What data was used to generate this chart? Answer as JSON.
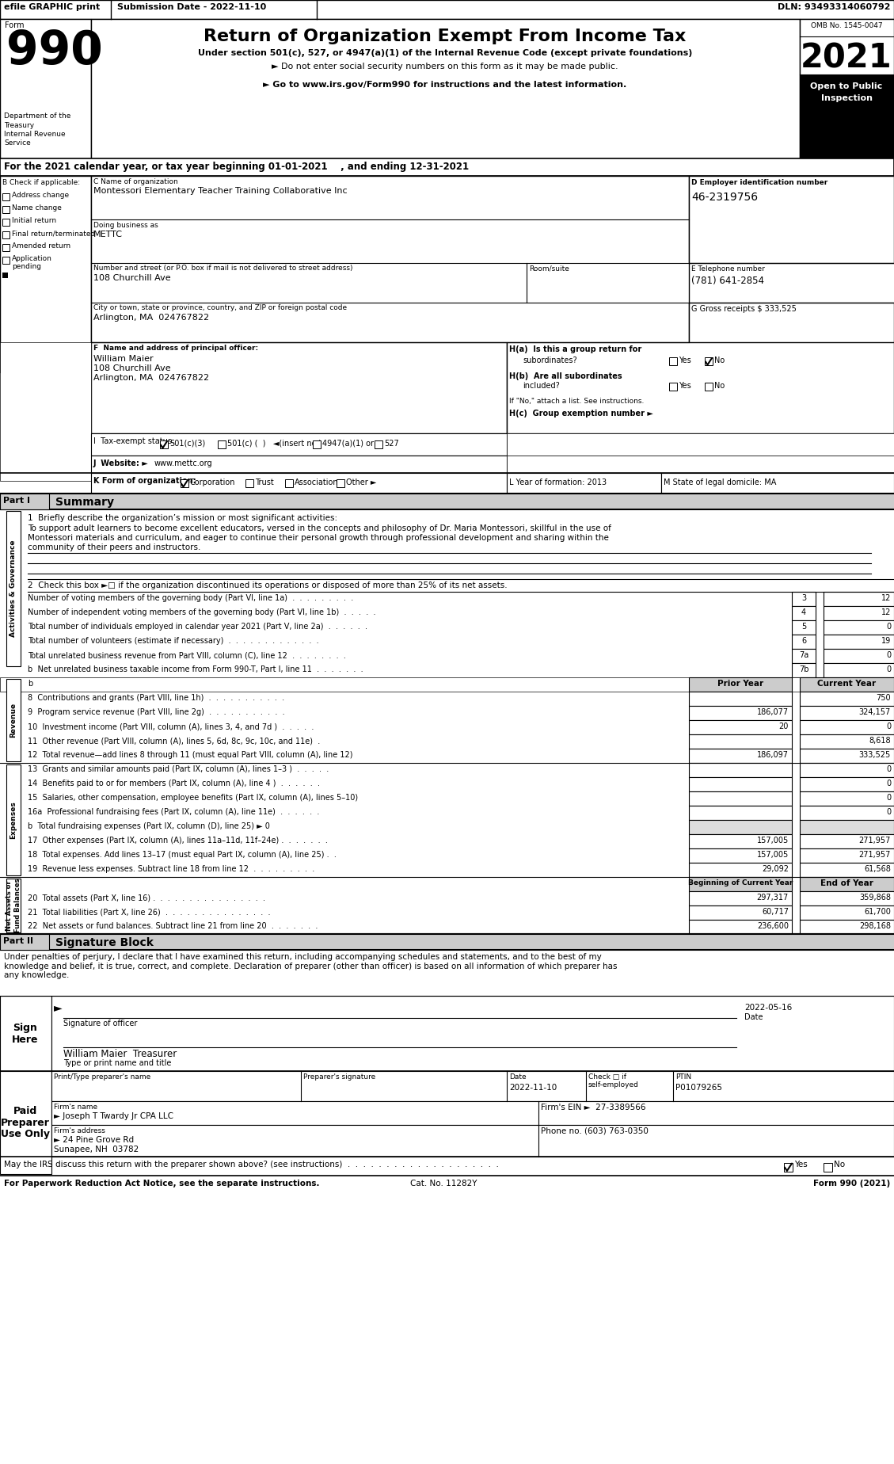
{
  "title": "Return of Organization Exempt From Income Tax",
  "subtitle1": "Under section 501(c), 527, or 4947(a)(1) of the Internal Revenue Code (except private foundations)",
  "subtitle2": "► Do not enter social security numbers on this form as it may be made public.",
  "subtitle3": "► Go to www.irs.gov/Form990 for instructions and the latest information.",
  "omb": "OMB No. 1545-0047",
  "year": "2021",
  "tax_year_line": "For the 2021 calendar year, or tax year beginning 01-01-2021    , and ending 12-31-2021",
  "org_name": "Montessori Elementary Teacher Training Collaborative Inc",
  "dba": "METTC",
  "street": "108 Churchill Ave",
  "city": "Arlington, MA  024767822",
  "EIN": "46-2319756",
  "phone": "(781) 641-2854",
  "gross_receipts": "333,525",
  "F_name": "William Maier",
  "F_street": "108 Churchill Ave",
  "F_city": "Arlington, MA  024767822",
  "J_website": "www.mettc.org",
  "line1_label": "1  Briefly describe the organization’s mission or most significant activities:",
  "line1_text1": "To support adult learners to become excellent educators, versed in the concepts and philosophy of Dr. Maria Montessori, skillful in the use of",
  "line1_text2": "Montessori materials and curriculum, and eager to continue their personal growth through professional development and sharing within the",
  "line1_text3": "community of their peers and instructors.",
  "line2_text": "2  Check this box ►□ if the organization discontinued its operations or disposed of more than 25% of its net assets.",
  "lines_ag": [
    [
      "3",
      "Number of voting members of the governing body (Part VI, line 1a)  .  .  .  .  .  .  .  .  .",
      "3",
      "12"
    ],
    [
      "4",
      "Number of independent voting members of the governing body (Part VI, line 1b)  .  .  .  .  .",
      "4",
      "12"
    ],
    [
      "5",
      "Total number of individuals employed in calendar year 2021 (Part V, line 2a)  .  .  .  .  .  .",
      "5",
      "0"
    ],
    [
      "6",
      "Total number of volunteers (estimate if necessary)  .  .  .  .  .  .  .  .  .  .  .  .  .",
      "6",
      "19"
    ],
    [
      "7a",
      "Total unrelated business revenue from Part VIII, column (C), line 12  .  .  .  .  .  .  .  .",
      "7a",
      "0"
    ],
    [
      "7b",
      "b  Net unrelated business taxable income from Form 990-T, Part I, line 11  .  .  .  .  .  .  .",
      "7b",
      "0"
    ]
  ],
  "revenue_lines": [
    [
      "8",
      "8  Contributions and grants (Part VIII, line 1h)  .  .  .  .  .  .  .  .  .  .  .",
      "",
      "750"
    ],
    [
      "9",
      "9  Program service revenue (Part VIII, line 2g)  .  .  .  .  .  .  .  .  .  .  .",
      "186,077",
      "324,157"
    ],
    [
      "10",
      "10  Investment income (Part VIII, column (A), lines 3, 4, and 7d )  .  .  .  .  .",
      "20",
      "0"
    ],
    [
      "11",
      "11  Other revenue (Part VIII, column (A), lines 5, 6d, 8c, 9c, 10c, and 11e)  .",
      "",
      "8,618"
    ],
    [
      "12",
      "12  Total revenue—add lines 8 through 11 (must equal Part VIII, column (A), line 12)",
      "186,097",
      "333,525"
    ]
  ],
  "expenses_lines": [
    [
      "13",
      "13  Grants and similar amounts paid (Part IX, column (A), lines 1–3 )  .  .  .  .  .",
      "",
      "0"
    ],
    [
      "14",
      "14  Benefits paid to or for members (Part IX, column (A), line 4 )  .  .  .  .  .  .",
      "",
      "0"
    ],
    [
      "15",
      "15  Salaries, other compensation, employee benefits (Part IX, column (A), lines 5–10)",
      "",
      "0"
    ],
    [
      "16a",
      "16a  Professional fundraising fees (Part IX, column (A), line 11e)  .  .  .  .  .  .",
      "",
      "0"
    ],
    [
      "b",
      "b  Total fundraising expenses (Part IX, column (D), line 25) ► 0",
      "",
      ""
    ],
    [
      "17",
      "17  Other expenses (Part IX, column (A), lines 11a–11d, 11f–24e) .  .  .  .  .  .  .",
      "157,005",
      "271,957"
    ],
    [
      "18",
      "18  Total expenses. Add lines 13–17 (must equal Part IX, column (A), line 25) .  .",
      "157,005",
      "271,957"
    ],
    [
      "19",
      "19  Revenue less expenses. Subtract line 18 from line 12  .  .  .  .  .  .  .  .  .",
      "29,092",
      "61,568"
    ]
  ],
  "net_assets_lines": [
    [
      "20",
      "20  Total assets (Part X, line 16) .  .  .  .  .  .  .  .  .  .  .  .  .  .  .  .",
      "297,317",
      "359,868"
    ],
    [
      "21",
      "21  Total liabilities (Part X, line 26)  .  .  .  .  .  .  .  .  .  .  .  .  .  .  .",
      "60,717",
      "61,700"
    ],
    [
      "22",
      "22  Net assets or fund balances. Subtract line 21 from line 20  .  .  .  .  .  .  .",
      "236,600",
      "298,168"
    ]
  ],
  "sig_text": "Under penalties of perjury, I declare that I have examined this return, including accompanying schedules and statements, and to the best of my\nknowledge and belief, it is true, correct, and complete. Declaration of preparer (other than officer) is based on all information of which preparer has\nany knowledge.",
  "sig_date_value": "2022-05-16",
  "sig_name": "William Maier  Treasurer",
  "prep_ptin": "P01079265",
  "prep_date_value": "2022-11-10",
  "firm_name": "Joseph T Twardy Jr CPA LLC",
  "firm_ein": "27-3389566",
  "firm_addr": "24 Pine Grove Rd",
  "firm_city": "Sunapee, NH  03782",
  "firm_phone": "(603) 763-0350",
  "paperwork_line": "For Paperwork Reduction Act Notice, see the separate instructions.",
  "cat_no": "Cat. No. 11282Y",
  "form_990_bottom": "Form 990 (2021)"
}
